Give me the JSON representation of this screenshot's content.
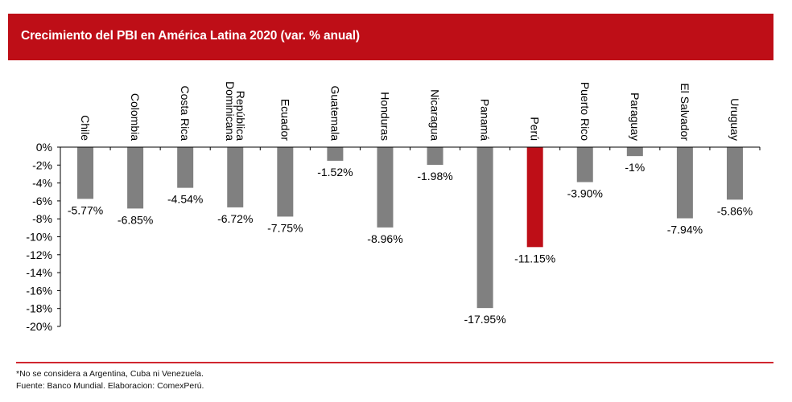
{
  "title": "Crecimiento del PBI en América Latina 2020 (var. % anual)",
  "footer": {
    "note": "*No se considera a Argentina, Cuba ni Venezuela.",
    "source": "Fuente: Banco Mundial. Elaboracion: ComexPerú."
  },
  "colors": {
    "header": "#be0e17",
    "bar_default": "#808080",
    "bar_highlight": "#be0e17",
    "footer_line": "#d0262f"
  },
  "chart_data": {
    "type": "bar",
    "title": "Crecimiento del PBI en América Latina 2020 (var. % anual)",
    "xlabel": "",
    "ylabel": "",
    "ylim": [
      -20,
      0
    ],
    "yticks": [
      0,
      -2,
      -4,
      -6,
      -8,
      -10,
      -12,
      -14,
      -16,
      -18,
      -20
    ],
    "ytick_labels": [
      "0%",
      "-2%",
      "-4%",
      "-6%",
      "-8%",
      "-10%",
      "-12%",
      "-14%",
      "-16%",
      "-18%",
      "-20%"
    ],
    "grid": false,
    "categories": [
      [
        "Chile"
      ],
      [
        "Colombia"
      ],
      [
        "Costa Rica"
      ],
      [
        "República",
        "Dominicana"
      ],
      [
        "Ecuador"
      ],
      [
        "Guatemala"
      ],
      [
        "Honduras"
      ],
      [
        "Nicaragua"
      ],
      [
        "Panamá"
      ],
      [
        "Perú"
      ],
      [
        "Puerto Rico"
      ],
      [
        "Paraguay"
      ],
      [
        "El Salvador"
      ],
      [
        "Uruguay"
      ]
    ],
    "values": [
      -5.77,
      -6.85,
      -4.54,
      -6.72,
      -7.75,
      -1.52,
      -8.96,
      -1.98,
      -17.95,
      -11.15,
      -3.9,
      -1.0,
      -7.94,
      -5.86
    ],
    "data_labels": [
      "-5.77%",
      "-6.85%",
      "-4.54%",
      "-6.72%",
      "-7.75%",
      "-1.52%",
      "-8.96%",
      "-1.98%",
      "-17.95%",
      "-11.15%",
      "-3.90%",
      "-1%",
      "-7.94%",
      "-5.86%"
    ],
    "highlight": "Perú"
  }
}
